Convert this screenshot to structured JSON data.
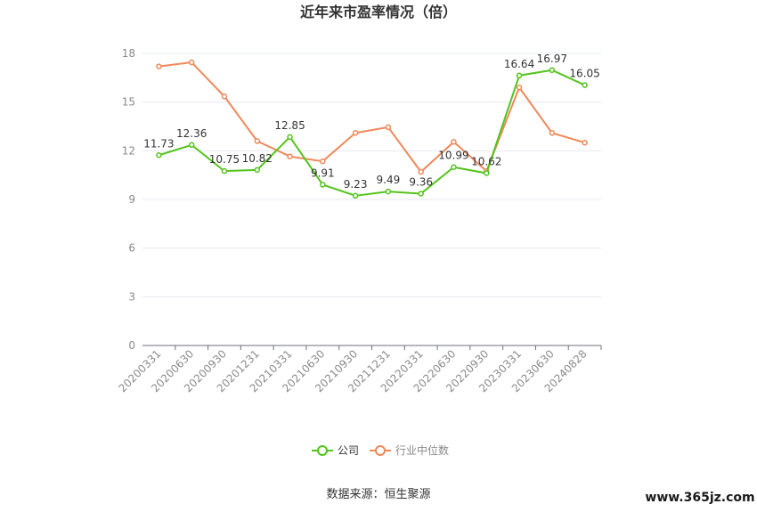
{
  "chart_data": {
    "type": "line",
    "title": "近年来市盈率情况（倍）",
    "categories": [
      "20200331",
      "20200630",
      "20200930",
      "20201231",
      "20210331",
      "20210630",
      "20210930",
      "20211231",
      "20220331",
      "20220630",
      "20220930",
      "20230331",
      "20230630",
      "20240828"
    ],
    "ylim": [
      0,
      18
    ],
    "yticks": [
      0,
      3,
      6,
      9,
      12,
      15,
      18
    ],
    "grid": true,
    "legend_position": "bottom",
    "series": [
      {
        "name": "公司",
        "color": "#52c41a",
        "values": [
          11.73,
          12.36,
          10.75,
          10.82,
          12.85,
          9.91,
          9.23,
          9.49,
          9.36,
          10.99,
          10.62,
          16.64,
          16.97,
          16.05
        ],
        "data_labels": [
          "11.73",
          "12.36",
          "10.75",
          "10.82",
          "12.85",
          "9.91",
          "9.23",
          "9.49",
          "9.36",
          "10.99",
          "10.62",
          "16.64",
          "16.97",
          "16.05"
        ]
      },
      {
        "name": "行业中位数",
        "color": "#f0885a",
        "values": [
          17.2,
          17.45,
          15.35,
          12.6,
          11.65,
          11.35,
          13.1,
          13.45,
          10.7,
          12.55,
          10.75,
          15.9,
          13.1,
          12.5
        ]
      }
    ]
  },
  "footer": {
    "source": "数据来源：恒生聚源",
    "watermark": "www.365jz.com"
  }
}
